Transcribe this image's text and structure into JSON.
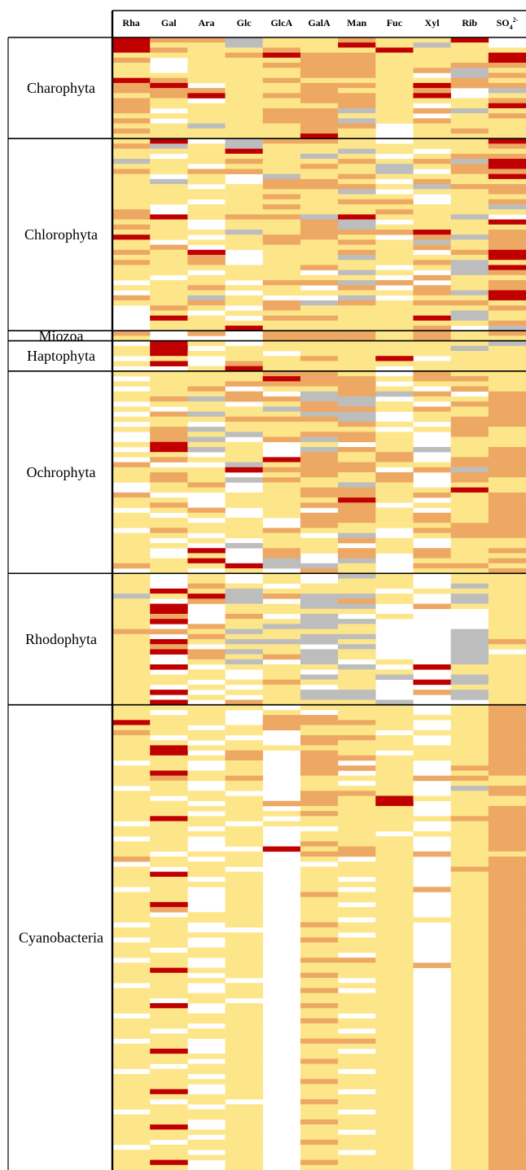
{
  "chart_data": {
    "type": "heatmap",
    "columns": [
      "Rha",
      "Gal",
      "Ara",
      "Glc",
      "GlcA",
      "GalA",
      "Man",
      "Fuc",
      "Xyl",
      "Rib",
      "SO4"
    ],
    "sulfate_label": {
      "base": "SO",
      "sub": "4",
      "sup": "2-"
    },
    "groups": [
      {
        "name": "Charophyta",
        "rows": 20,
        "cells": [
          "3220112113W",
          "3110113101W",
          "32112113111",
          "11123221113",
          "2W111221113",
          "1W112221122",
          "1W111221201",
          "11111221W02",
          "32112111121",
          "23W11221322",
          "222112112W0",
          "123122213W1",
          "21W11221112",
          "21111121W13",
          "2W112201201",
          "11112211W12",
          "2W112201211",
          "1101122W111",
          "2111121W121",
          "1111131W111"
        ]
      },
      {
        "name": "Chlorophyta",
        "rows": 38,
        "cells": [
          "13W0221W113",
          "20101111112",
          "11131101W11",
          "1W11101W122",
          "01121121203",
          "11W11210123",
          "21221110W22",
          "1W1W0121113",
          "101W221W211",
          "11W12221022",
          "1111110W112",
          "11112111W11",
          "11W11122W12",
          "1W112111110",
          "2W111112111",
          "2312203110W",
          "11W1120W113",
          "21W11201111",
          "11101222312",
          "31W1221W202",
          "1W112121012",
          "12W11111212",
          "213W1121W23",
          "112W1101113",
          "212W1111201",
          "1111121W103",
          "11W11W01W02",
          "1W11111W211",
          "W11W2202W12",
          "11211W2W212",
          "W11W1111203",
          "2101WW0W113",
          "11212021221",
          "W21W2111112",
          "W1W11111101",
          "W31W2211301",
          "W1111111112",
          "W11311112W0"
        ]
      },
      {
        "name": "Miozoa",
        "rows": 2,
        "cells": [
          "2W2W2221212",
          "1WWW2221211"
        ]
      },
      {
        "name": "Haptophyta",
        "rows": 6,
        "cells": [
          "W31W1111110",
          "13W11111101",
          "1311W111111",
          "W1W11213W11",
          "13W21111111",
          "WW13111W111"
        ]
      },
      {
        "name": "Ochrophyta",
        "rows": 40,
        "cells": [
          "1111221W211",
          "W1113221221",
          "1112222W111",
          "W12W1121W21",
          "1112W0202W2",
          "1202200W112",
          "W11W1201W22",
          "1W110221212",
          "W201100W112",
          "1112220W122",
          "W1W11121W22",
          "1201111W121",
          "W2101221W21",
          "W20W2021W11",
          "1311W1W1W11",
          "W301W021012",
          "11W1W212W12",
          "W2113212W22",
          "2WW01221122",
          "1113222W202",
          "121W1212W22",
          "12102112W21",
          "W12W1101W11",
          "W11W1221131",
          "2WW11221212",
          "11W11131W12",
          "12W1122W112",
          "W12W1W21W12",
          "1W1W1221212",
          "11W1W221212",
          "1111W211122",
          "W211211W222",
          "11W11W0W122",
          "1W1W1121W11",
          "11W011W1W11",
          "1W3W2121212",
          "1W1W2W2W211",
          "113W0W0W112",
          "2113001W221",
          "W1W1W21W112"
        ]
      },
      {
        "name": "Rhodophyta",
        "rows": 26,
        "cells": [
          "1W1W1W01W11",
          "1W1W1W11W11",
          "1W21W111W01",
          "1310111W111",
          "01302001W01",
          "1W20W021W01",
          "13W1100W211",
          "13W1111WWW1",
          "12W2W0W1WW1",
          "13W1100WWW1",
          "1W21001WWW1",
          "2210111WW01",
          "1W21100WW01",
          "1310001WW02",
          "12W11W0WW01",
          "1320101WW0W",
          "1W21201WW01",
          "1W10W0W1W01",
          "13W1110W311",
          "1W1W1W11W11",
          "111W1010W01",
          "11W1211W301",
          "1W1W1W1WW11",
          "13W1100W201",
          "1W1W100WW01",
          "13W21110WW1"
        ]
      },
      {
        "name": "Cyanobacteria",
        "rows": 92,
        "cells": [
          "1111W111W12",
          "1W1W1W11W12",
          "111W2211112",
          "311W2221W12",
          "11W12111W12",
          "2111W11W112",
          "1W1WW221W12",
          "11W1W211W12",
          "13111111112",
          "13W2W21W112",
          "1112W221112",
          "W1W1W2W1W12",
          "11W1W221W22",
          "1311W2W1W12",
          "1212W111221",
          "11W1W1W1W11",
          "W1W1W111W02",
          "111WW221W12",
          "1W11W213111",
          "11W12213W11",
          "1111W111W12",
          "11W11211W12",
          "1311W111122",
          "W11W1111W12",
          "11W1WW11W12",
          "1111W11W112",
          "W1W1W111W12",
          "11W1W211W12",
          "11WW3121W12",
          "1W11W221211",
          "21W1W1W1W12",
          "W111WW11W12",
          "1W1WW111W22",
          "1311W111W12",
          "11W1W1W1W12",
          "1111W111W12",
          "W1W1W1W1212",
          "11W1W211W12",
          "11W1W111W12",
          "13W1W1W1W12",
          "12W1W111W12",
          "1W11W111W12",
          "1111W1W1112",
          "W1W1W211W12",
          "11WWW111W12",
          "1111W1W1W12",
          "W1W1W211W12",
          "11W1W111W12",
          "1W11W111W12",
          "1111W1W1W12",
          "W1W1W221W12",
          "11W1W111212",
          "1311W111W12",
          "11W1W211W12",
          "111WW1W1W12",
          "W1W1W111W12",
          "11W1W2W1W12",
          "1111W111W12",
          "1W1WW111W12",
          "13W1W211W12",
          "11W1W111W12",
          "W111W1W1W12",
          "1111W211W12",
          "11W1W111W12",
          "1W11W1W1W12",
          "1111W111W12",
          "W1W1W221W12",
          "11W1W111W12",
          "13W1W1W1W12",
          "1111W111W12",
          "11W1W211W12",
          "1W11W111W12",
          "W111W1W1W12",
          "11W1W111W12",
          "1111W211W12",
          "11W1W111W12",
          "13W1W1W1W12",
          "1111W111W12",
          "1W1WW211W12",
          "11W1W111W12",
          "W111W1W1W12",
          "1111W111W12",
          "11W1W211W12",
          "13W1W111W12",
          "1111W1W1W12",
          "11W1W111W12",
          "1W11W211W12",
          "W111W111W12",
          "11W1W1W1W12",
          "1111W111W12",
          "13W1W211W12",
          "11W1W111W12"
        ]
      }
    ],
    "cell_codes": {
      "W": "absent (white)",
      "0": "not determined (grey)",
      "1": "low",
      "2": "medium",
      "3": "high"
    },
    "colors": {
      "W": "#ffffff",
      "0": "#bdbdbd",
      "1": "#fde68a",
      "2": "#eda863",
      "3": "#c00000"
    }
  }
}
